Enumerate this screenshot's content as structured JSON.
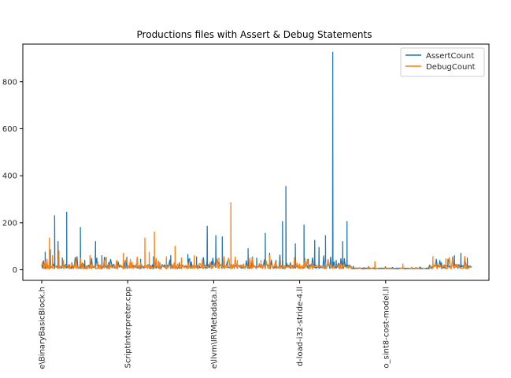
{
  "chart_data": {
    "type": "line",
    "title": "Productions files with Assert & Debug Statements",
    "xlabel": "",
    "ylabel": "",
    "ylim": [
      -45,
      960
    ],
    "y_ticks": [
      0,
      200,
      400,
      600,
      800
    ],
    "x_range": [
      0,
      1000
    ],
    "x_tick_positions": [
      0,
      200,
      400,
      600,
      800
    ],
    "x_tick_labels": [
      "e\\BinaryBasicBlock.h",
      "ScriptInterpreter.cpp",
      "e\\llvm\\IR\\Metadata.h",
      "d-load-i32-stride-4.ll",
      "o_sint8-cost-model.ll"
    ],
    "legend_position": "upper right",
    "grid": false,
    "series": [
      {
        "name": "AssertCount",
        "color": "#1f77b4",
        "peaks": [
          [
            8,
            75
          ],
          [
            20,
            85
          ],
          [
            30,
            230
          ],
          [
            38,
            120
          ],
          [
            48,
            50
          ],
          [
            58,
            245
          ],
          [
            70,
            30
          ],
          [
            90,
            180
          ],
          [
            100,
            40
          ],
          [
            110,
            20
          ],
          [
            125,
            120
          ],
          [
            140,
            60
          ],
          [
            150,
            10
          ],
          [
            200,
            15
          ],
          [
            230,
            25
          ],
          [
            260,
            55
          ],
          [
            290,
            40
          ],
          [
            300,
            60
          ],
          [
            320,
            30
          ],
          [
            340,
            65
          ],
          [
            360,
            55
          ],
          [
            385,
            185
          ],
          [
            395,
            35
          ],
          [
            405,
            145
          ],
          [
            420,
            140
          ],
          [
            440,
            20
          ],
          [
            455,
            30
          ],
          [
            480,
            90
          ],
          [
            500,
            50
          ],
          [
            520,
            155
          ],
          [
            530,
            70
          ],
          [
            545,
            40
          ],
          [
            560,
            205
          ],
          [
            568,
            355
          ],
          [
            578,
            30
          ],
          [
            590,
            110
          ],
          [
            610,
            190
          ],
          [
            620,
            45
          ],
          [
            635,
            125
          ],
          [
            645,
            95
          ],
          [
            660,
            145
          ],
          [
            677,
            925
          ],
          [
            685,
            40
          ],
          [
            700,
            120
          ],
          [
            710,
            205
          ],
          [
            725,
            15
          ],
          [
            760,
            5
          ],
          [
            800,
            5
          ],
          [
            880,
            5
          ],
          [
            930,
            30
          ],
          [
            945,
            45
          ],
          [
            960,
            60
          ],
          [
            975,
            70
          ],
          [
            990,
            50
          ]
        ],
        "baseline": 5
      },
      {
        "name": "DebugCount",
        "color": "#ff7f0e",
        "peaks": [
          [
            5,
            20
          ],
          [
            10,
            10
          ],
          [
            18,
            135
          ],
          [
            25,
            60
          ],
          [
            40,
            80
          ],
          [
            50,
            40
          ],
          [
            65,
            20
          ],
          [
            80,
            50
          ],
          [
            95,
            30
          ],
          [
            112,
            60
          ],
          [
            130,
            35
          ],
          [
            145,
            40
          ],
          [
            155,
            5
          ],
          [
            175,
            40
          ],
          [
            190,
            70
          ],
          [
            205,
            30
          ],
          [
            220,
            25
          ],
          [
            240,
            135
          ],
          [
            250,
            75
          ],
          [
            262,
            160
          ],
          [
            275,
            30
          ],
          [
            290,
            55
          ],
          [
            310,
            100
          ],
          [
            325,
            50
          ],
          [
            340,
            30
          ],
          [
            355,
            60
          ],
          [
            375,
            20
          ],
          [
            395,
            20
          ],
          [
            412,
            50
          ],
          [
            425,
            40
          ],
          [
            440,
            285
          ],
          [
            455,
            40
          ],
          [
            470,
            25
          ],
          [
            490,
            50
          ],
          [
            510,
            40
          ],
          [
            530,
            60
          ],
          [
            555,
            45
          ],
          [
            580,
            25
          ],
          [
            600,
            25
          ],
          [
            630,
            30
          ],
          [
            660,
            30
          ],
          [
            700,
            20
          ],
          [
            720,
            15
          ],
          [
            740,
            10
          ],
          [
            760,
            15
          ],
          [
            775,
            35
          ],
          [
            800,
            5
          ],
          [
            840,
            25
          ],
          [
            870,
            10
          ],
          [
            910,
            25
          ],
          [
            940,
            15
          ],
          [
            960,
            10
          ],
          [
            990,
            10
          ]
        ],
        "baseline": 3
      }
    ]
  }
}
